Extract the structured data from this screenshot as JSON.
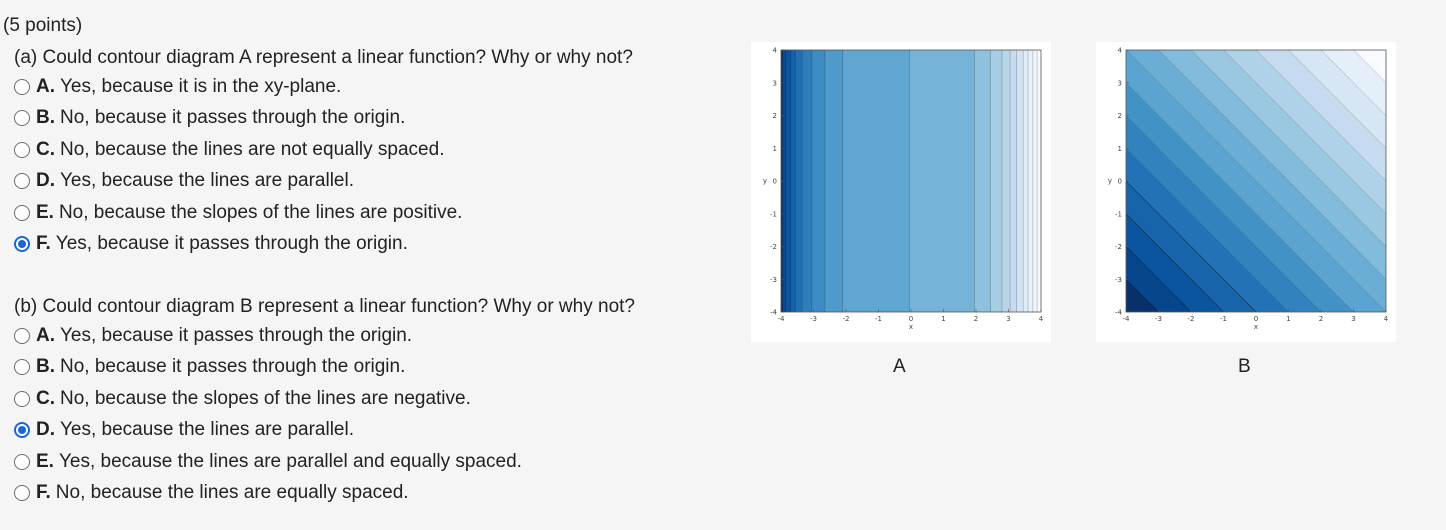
{
  "points": "(5 points)",
  "part_a": {
    "question": "(a) Could contour diagram A represent a linear function? Why or why not?",
    "options": [
      {
        "letter": "A.",
        "text": "Yes, because it is in the xy-plane.",
        "selected": false
      },
      {
        "letter": "B.",
        "text": "No, because it passes through the origin.",
        "selected": false
      },
      {
        "letter": "C.",
        "text": "No, because the lines are not equally spaced.",
        "selected": false
      },
      {
        "letter": "D.",
        "text": "Yes, because the lines are parallel.",
        "selected": false
      },
      {
        "letter": "E.",
        "text": "No, because the slopes of the lines are positive.",
        "selected": false
      },
      {
        "letter": "F.",
        "text": "Yes, because it passes through the origin.",
        "selected": true
      }
    ]
  },
  "part_b": {
    "question": "(b) Could contour diagram B represent a linear function? Why or why not?",
    "options": [
      {
        "letter": "A.",
        "text": "Yes, because it passes through the origin.",
        "selected": false
      },
      {
        "letter": "B.",
        "text": "No, because it passes through the origin.",
        "selected": false
      },
      {
        "letter": "C.",
        "text": "No, because the slopes of the lines are negative.",
        "selected": false
      },
      {
        "letter": "D.",
        "text": "Yes, because the lines are parallel.",
        "selected": true
      },
      {
        "letter": "E.",
        "text": "Yes, because the lines are parallel and equally spaced.",
        "selected": false
      },
      {
        "letter": "F.",
        "text": "No, because the lines are equally spaced.",
        "selected": false
      }
    ]
  },
  "diagrams": {
    "A": {
      "caption": "A",
      "xlabel": "x",
      "ylabel": "y",
      "x_ticks": [
        "-4",
        "-3",
        "-2",
        "-1",
        "0",
        "1",
        "2",
        "3",
        "4"
      ],
      "y_ticks": [
        "4",
        "3",
        "2",
        "1",
        "0",
        "-1",
        "-2",
        "-3",
        "-4"
      ],
      "xlim": [
        -4,
        4
      ],
      "ylim": [
        -4,
        4
      ],
      "contour_x_values": [
        -3.95,
        -3.85,
        -3.7,
        -3.55,
        -3.35,
        -3.05,
        -2.65,
        -2.1,
        -0.05,
        1.95,
        2.45,
        2.8,
        3.05,
        3.25,
        3.45,
        3.6,
        3.75,
        3.88
      ],
      "band_colors": [
        "#08306b",
        "#08488e",
        "#0b559f",
        "#1562a9",
        "#2070b4",
        "#2e7ebc",
        "#3d8dc4",
        "#4e9acb",
        "#60a6d2",
        "#76b3d8",
        "#8ec1de",
        "#a5cde3",
        "#b7d4ea",
        "#c6dbef",
        "#d4e4f4",
        "#dfebf7",
        "#e8f1fa",
        "#f0f6fc",
        "#f7fbff"
      ]
    },
    "B": {
      "caption": "B",
      "xlabel": "x",
      "ylabel": "y",
      "x_ticks": [
        "-4",
        "-3",
        "-2",
        "-1",
        "0",
        "1",
        "2",
        "3",
        "4"
      ],
      "y_ticks": [
        "4",
        "3",
        "2",
        "1",
        "0",
        "-1",
        "-2",
        "-3",
        "-4"
      ],
      "xlim": [
        -4,
        4
      ],
      "ylim": [
        -4,
        4
      ],
      "contour_levels": [
        -7,
        -6,
        -5,
        -4,
        -3,
        -2,
        -1,
        0,
        1,
        2,
        3,
        4,
        5,
        6,
        7
      ],
      "band_colors": [
        "#08306b",
        "#08468c",
        "#0b559f",
        "#1764ab",
        "#2272b6",
        "#3282be",
        "#4292c6",
        "#5ba3d0",
        "#6aaed6",
        "#82bbdb",
        "#9ac8e0",
        "#b0d2e8",
        "#c6dbef",
        "#d6e6f4",
        "#e4eff9",
        "#f7fbff"
      ]
    }
  }
}
